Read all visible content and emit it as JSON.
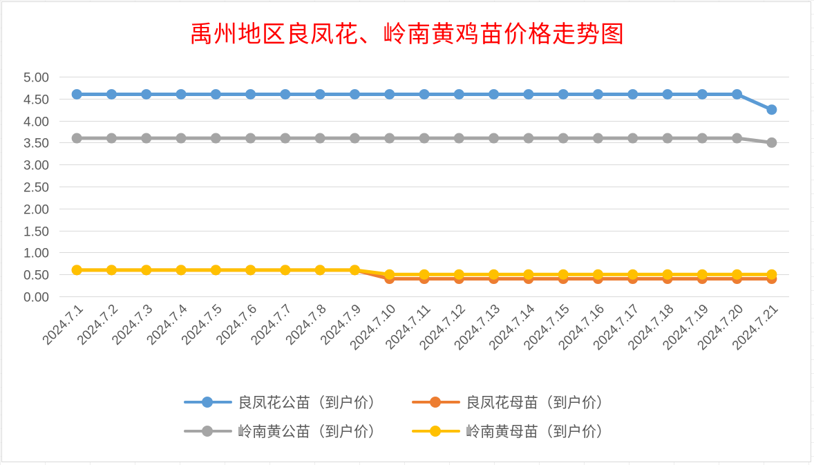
{
  "chart_data": {
    "type": "line",
    "title": "禹州地区良凤花、岭南黄鸡苗价格走势图",
    "categories": [
      "2024.7.1",
      "2024.7.2",
      "2024.7.3",
      "2024.7.4",
      "2024.7.5",
      "2024.7.6",
      "2024.7.7",
      "2024.7.8",
      "2024.7.9",
      "2024.7.10",
      "2024.7.11",
      "2024.7.12",
      "2024.7.13",
      "2024.7.14",
      "2024.7.15",
      "2024.7.16",
      "2024.7.17",
      "2024.7.18",
      "2024.7.19",
      "2024.7.20",
      "2024.7.21"
    ],
    "y_ticks": [
      "0.00",
      "0.50",
      "1.00",
      "1.50",
      "2.00",
      "2.50",
      "3.00",
      "3.50",
      "4.00",
      "4.50",
      "5.00"
    ],
    "ylim": [
      0,
      5
    ],
    "grid": true,
    "legend_position": "bottom",
    "series": [
      {
        "name": "良凤花公苗（到户价）",
        "color": "#5b9bd5",
        "values": [
          4.6,
          4.6,
          4.6,
          4.6,
          4.6,
          4.6,
          4.6,
          4.6,
          4.6,
          4.6,
          4.6,
          4.6,
          4.6,
          4.6,
          4.6,
          4.6,
          4.6,
          4.6,
          4.6,
          4.6,
          4.25
        ]
      },
      {
        "name": "良凤花母苗（到户价）",
        "color": "#ed7d31",
        "values": [
          0.6,
          0.6,
          0.6,
          0.6,
          0.6,
          0.6,
          0.6,
          0.6,
          0.6,
          0.4,
          0.4,
          0.4,
          0.4,
          0.4,
          0.4,
          0.4,
          0.4,
          0.4,
          0.4,
          0.4,
          0.4
        ]
      },
      {
        "name": "岭南黄公苗（到户价）",
        "color": "#a5a5a5",
        "values": [
          3.6,
          3.6,
          3.6,
          3.6,
          3.6,
          3.6,
          3.6,
          3.6,
          3.6,
          3.6,
          3.6,
          3.6,
          3.6,
          3.6,
          3.6,
          3.6,
          3.6,
          3.6,
          3.6,
          3.6,
          3.5
        ]
      },
      {
        "name": "岭南黄母苗（到户价）",
        "color": "#ffc000",
        "values": [
          0.6,
          0.6,
          0.6,
          0.6,
          0.6,
          0.6,
          0.6,
          0.6,
          0.6,
          0.5,
          0.5,
          0.5,
          0.5,
          0.5,
          0.5,
          0.5,
          0.5,
          0.5,
          0.5,
          0.5,
          0.5
        ]
      }
    ]
  }
}
